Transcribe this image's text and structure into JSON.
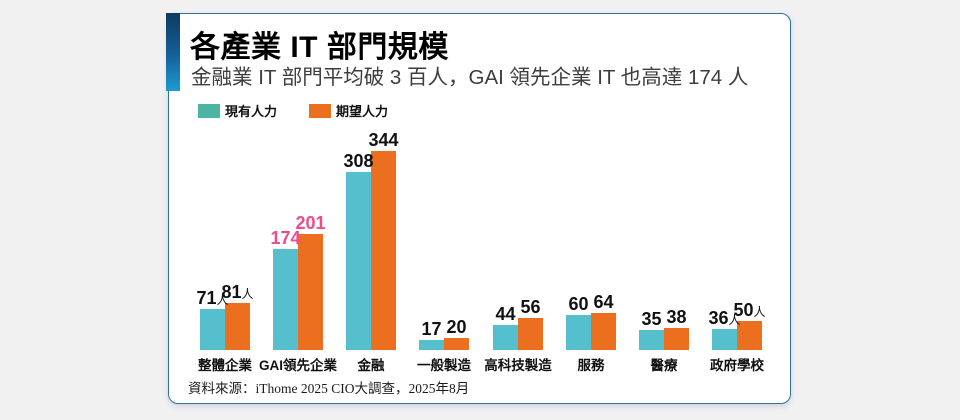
{
  "card": {
    "title": "各產業 IT 部門規模",
    "subtitle": "金融業 IT 部門平均破 3 百人，GAI 領先企業 IT 也高達 174 人",
    "source": "資料來源：iThome 2025 CIO大調查，2025年8月"
  },
  "colors": {
    "current_bar": "#55bfce",
    "desired_bar": "#ec6e1f",
    "legend_current_swatch": "#4cb5a1",
    "legend_desired_swatch": "#ec6e1f",
    "highlight_value_label": "#ee4d87",
    "accent_bar_top": "#0d3a60",
    "accent_bar_bottom": "#1e9ad2",
    "card_border": "#35709f"
  },
  "chart_data": {
    "type": "bar",
    "title": "各產業 IT 部門規模",
    "subtitle": "金融業 IT 部門平均破 3 百人，GAI 領先企業 IT 也高達 174 人",
    "unit": "人",
    "categories": [
      "整體企業",
      "GAI領先企業",
      "金融",
      "一般製造",
      "高科技製造",
      "服務",
      "醫療",
      "政府學校"
    ],
    "series": [
      {
        "name": "現有人力",
        "values": [
          71,
          174,
          308,
          17,
          44,
          60,
          35,
          36
        ]
      },
      {
        "name": "期望人力",
        "values": [
          81,
          201,
          344,
          20,
          56,
          64,
          38,
          50
        ]
      }
    ],
    "value_suffixes": [
      "人",
      "",
      "",
      "",
      "",
      "",
      "",
      "人"
    ],
    "highlighted_category": "GAI領先企業",
    "ylim": [
      0,
      360
    ],
    "grid": false,
    "legend_position": "top-left",
    "source": "資料來源：iThome 2025 CIO大調查，2025年8月"
  }
}
